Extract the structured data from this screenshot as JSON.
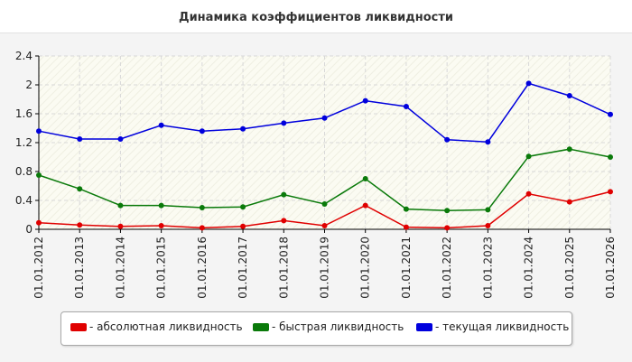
{
  "chart_data": {
    "type": "line",
    "title": "Динамика коэффициентов ликвидности",
    "categories": [
      "01.01.2012",
      "01.01.2013",
      "01.01.2014",
      "01.01.2015",
      "01.01.2016",
      "01.01.2017",
      "01.01.2018",
      "01.01.2019",
      "01.01.2020",
      "01.01.2021",
      "01.01.2022",
      "01.01.2023",
      "01.01.2024",
      "01.01.2025",
      "01.01.2026"
    ],
    "ylim": [
      0,
      2.4
    ],
    "yticks": [
      "0",
      "0.4",
      "0.8",
      "1.2",
      "1.6",
      "2",
      "2.4"
    ],
    "grid": true,
    "legend_position": "bottom",
    "series": [
      {
        "name": "- абсолютная ликвидность",
        "color": "#e00000",
        "values": [
          0.09,
          0.06,
          0.04,
          0.05,
          0.02,
          0.04,
          0.12,
          0.05,
          0.33,
          0.03,
          0.02,
          0.05,
          0.49,
          0.38,
          0.52
        ]
      },
      {
        "name": "- быстрая ликвидность",
        "color": "#0a7a0a",
        "values": [
          0.75,
          0.56,
          0.33,
          0.33,
          0.3,
          0.31,
          0.48,
          0.35,
          0.7,
          0.28,
          0.26,
          0.27,
          1.01,
          1.11,
          1.0
        ]
      },
      {
        "name": "- текущая ликвидность",
        "color": "#0000dd",
        "values": [
          1.36,
          1.25,
          1.25,
          1.44,
          1.36,
          1.39,
          1.47,
          1.54,
          1.78,
          1.7,
          1.24,
          1.21,
          2.02,
          1.85,
          1.59
        ]
      }
    ]
  }
}
